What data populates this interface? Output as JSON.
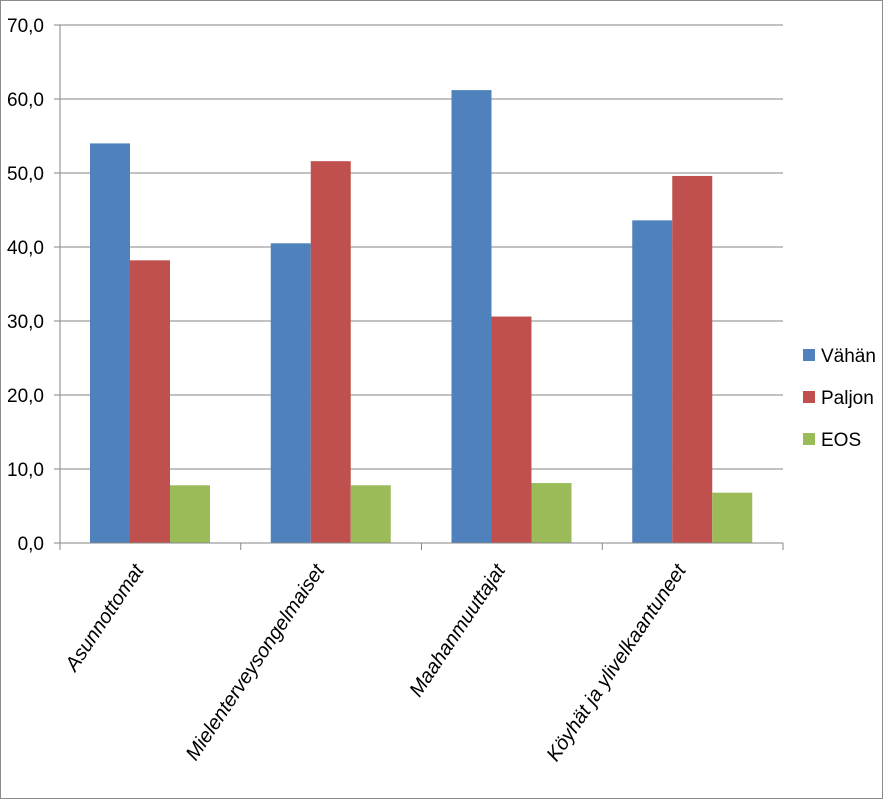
{
  "chart_data": {
    "type": "bar",
    "title": "",
    "xlabel": "",
    "ylabel": "",
    "ylim": [
      0,
      70
    ],
    "y_ticks": [
      "0,0",
      "10,0",
      "20,0",
      "30,0",
      "40,0",
      "50,0",
      "60,0",
      "70,0"
    ],
    "grid": true,
    "legend_position": "right",
    "categories": [
      "Asunnottomat",
      "Mielenterveysongelmaiset",
      "Maahanmuuttajat",
      "Köyhät ja ylivelkaantuneet"
    ],
    "series": [
      {
        "name": "Vähän",
        "color": "#4f81bd",
        "values": [
          54.0,
          40.5,
          61.2,
          43.6
        ]
      },
      {
        "name": "Paljon",
        "color": "#c0504d",
        "values": [
          38.2,
          51.6,
          30.6,
          49.6
        ]
      },
      {
        "name": "EOS",
        "color": "#9bbb59",
        "values": [
          7.8,
          7.8,
          8.1,
          6.8
        ]
      }
    ]
  }
}
